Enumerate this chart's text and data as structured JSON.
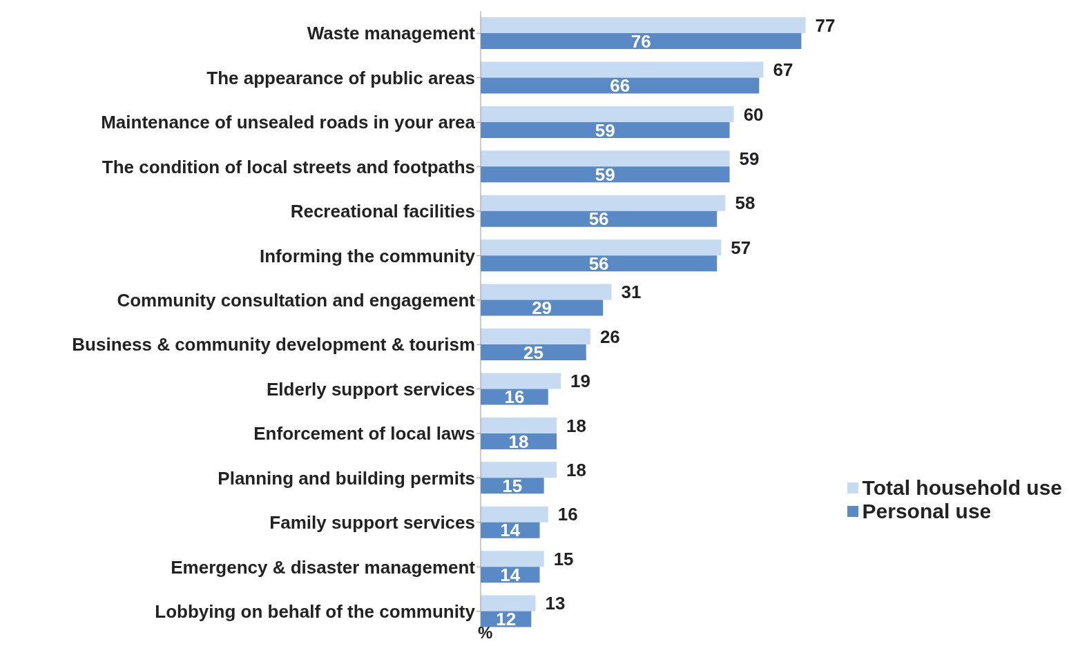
{
  "chart_data": {
    "type": "bar",
    "orientation": "horizontal",
    "xlabel": "%",
    "categories": [
      "Waste management",
      "The appearance of public areas",
      "Maintenance of unsealed roads in your area",
      "The condition of local streets and footpaths",
      "Recreational facilities",
      "Informing the community",
      "Community consultation and engagement",
      "Business & community development & tourism",
      "Elderly support services",
      "Enforcement of local laws",
      "Planning and building permits",
      "Family support services",
      "Emergency & disaster management",
      "Lobbying on behalf of the community"
    ],
    "series": [
      {
        "name": "Total household use",
        "color": "#c6daf1",
        "values": [
          77,
          67,
          60,
          59,
          58,
          57,
          31,
          26,
          19,
          18,
          18,
          16,
          15,
          13
        ]
      },
      {
        "name": "Personal use",
        "color": "#5a8ac6",
        "values": [
          76,
          66,
          59,
          59,
          56,
          56,
          29,
          25,
          16,
          18,
          15,
          14,
          14,
          12
        ]
      }
    ],
    "data_labels": true,
    "legend": "bottom right"
  }
}
